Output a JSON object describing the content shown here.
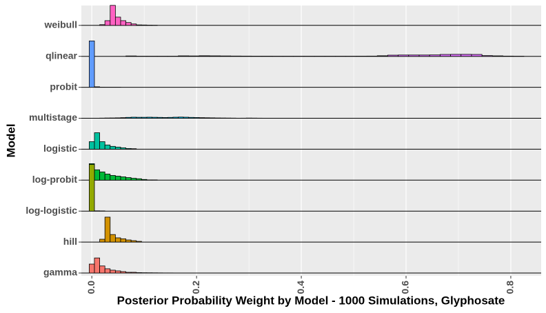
{
  "chart_data": {
    "type": "ridgeline-histogram",
    "x_label": "Posterior Probability Weight by Model - 1000 Simulations, Glyphosate",
    "y_label": "Model",
    "xlim": [
      -0.02,
      0.858
    ],
    "xticks": [
      {
        "value": 0,
        "label": "0.0"
      },
      0.2,
      0.4,
      0.6,
      0.8
    ],
    "minor_xticks": [
      0.1,
      0.3,
      0.5,
      0.7
    ],
    "ylim": [
      0,
      1000
    ],
    "grid": true,
    "series": [
      {
        "name": "gamma",
        "color": "#F8766D",
        "bins": [
          -0.005,
          0.005,
          0.015,
          0.025,
          0.035,
          0.045,
          0.055,
          0.065,
          0.075,
          0.085,
          0.095,
          0.105,
          0.115,
          0.125,
          0.135,
          0.145,
          0.155
        ],
        "values": [
          190,
          320,
          150,
          90,
          60,
          45,
          30,
          15,
          15,
          8,
          6,
          5,
          4,
          3,
          2,
          2
        ]
      },
      {
        "name": "hill",
        "color": "#D39200",
        "bins": [
          0.015,
          0.025,
          0.035,
          0.045,
          0.055,
          0.065,
          0.075,
          0.085,
          0.095
        ],
        "values": [
          60,
          530,
          160,
          90,
          70,
          45,
          30,
          15
        ]
      },
      {
        "name": "log-logistic",
        "color": "#93AA00",
        "bins": [
          -0.005,
          0.005,
          0.015,
          0.025
        ],
        "values": [
          990,
          6,
          4
        ]
      },
      {
        "name": "log-probit",
        "color": "#00BA38",
        "bins": [
          -0.005,
          0.005,
          0.015,
          0.025,
          0.035,
          0.045,
          0.055,
          0.065,
          0.075,
          0.085,
          0.095,
          0.105,
          0.115,
          0.125
        ],
        "values": [
          350,
          220,
          175,
          130,
          100,
          85,
          70,
          55,
          40,
          30,
          15,
          5,
          5
        ]
      },
      {
        "name": "logistic",
        "color": "#00C19F",
        "bins": [
          -0.005,
          0.005,
          0.015,
          0.025,
          0.035,
          0.045,
          0.055,
          0.065,
          0.075,
          0.085
        ],
        "values": [
          160,
          350,
          160,
          90,
          60,
          45,
          30,
          15,
          10
        ]
      },
      {
        "name": "multistage",
        "color": "#00B9E3",
        "bins": [
          0.015,
          0.025,
          0.035,
          0.045,
          0.055,
          0.065,
          0.075,
          0.085,
          0.095,
          0.105,
          0.115,
          0.125,
          0.135,
          0.145,
          0.155,
          0.165,
          0.175,
          0.185,
          0.195,
          0.205,
          0.215,
          0.225,
          0.235,
          0.245,
          0.255,
          0.265,
          0.275,
          0.285,
          0.295,
          0.305,
          0.315,
          0.325
        ],
        "values": [
          3,
          5,
          6,
          8,
          12,
          18,
          22,
          20,
          20,
          22,
          20,
          18,
          15,
          18,
          22,
          25,
          22,
          18,
          15,
          12,
          10,
          8,
          6,
          5,
          4,
          3,
          0,
          2,
          4,
          3,
          2
        ]
      },
      {
        "name": "probit",
        "color": "#619CFF",
        "bins": [
          -0.005,
          0.005,
          0.015,
          0.025,
          0.035,
          0.045,
          0.055
        ],
        "values": [
          985,
          10,
          3,
          2,
          2,
          2
        ]
      },
      {
        "name": "qlinear",
        "color": "#DB72FB",
        "bins": [
          0.065,
          0.085,
          0.105,
          0.125,
          0.145,
          0.165,
          0.185,
          0.205,
          0.225,
          0.245,
          0.265,
          0.285,
          0.305,
          0.325,
          0.345,
          0.365,
          0.385,
          0.405,
          0.425,
          0.445,
          0.465,
          0.485,
          0.505,
          0.525,
          0.545,
          0.565,
          0.585,
          0.605,
          0.625,
          0.645,
          0.665,
          0.685,
          0.705,
          0.725,
          0.745,
          0.765,
          0.785,
          0.805,
          0.825
        ],
        "values": [
          8,
          3,
          3,
          3,
          3,
          10,
          8,
          12,
          10,
          8,
          6,
          5,
          4,
          4,
          3,
          3,
          3,
          3,
          3,
          3,
          3,
          3,
          4,
          5,
          12,
          25,
          28,
          28,
          28,
          30,
          40,
          42,
          42,
          40,
          15,
          10,
          5,
          3
        ]
      },
      {
        "name": "weibull",
        "color": "#FF61C3",
        "bins": [
          0.015,
          0.025,
          0.035,
          0.045,
          0.055,
          0.065,
          0.075,
          0.085,
          0.095,
          0.105,
          0.115,
          0.125
        ],
        "values": [
          15,
          100,
          425,
          175,
          100,
          60,
          30,
          10,
          8,
          5,
          3
        ]
      }
    ]
  }
}
